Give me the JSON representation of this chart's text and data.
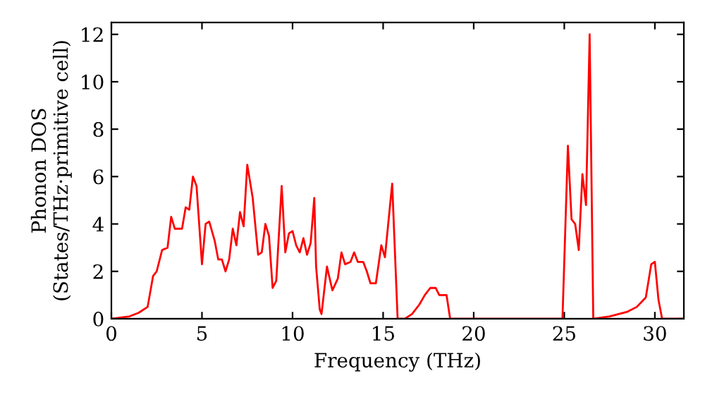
{
  "chart_data": {
    "type": "line",
    "xlabel": "Frequency (THz)",
    "ylabel": "Phonon DOS\n(States/THz·primitive cell)",
    "xlim": [
      0,
      31.6
    ],
    "ylim": [
      0,
      12.5
    ],
    "xticks": [
      0,
      5,
      10,
      15,
      20,
      25,
      30
    ],
    "yticks": [
      0,
      2,
      4,
      6,
      8,
      10,
      12
    ],
    "grid": false,
    "legend": false,
    "series": [
      {
        "color": "#ff0000",
        "x": [
          0,
          1,
          1.5,
          2,
          2.3,
          2.5,
          2.8,
          3.1,
          3.3,
          3.5,
          3.9,
          4.1,
          4.3,
          4.5,
          4.7,
          5.0,
          5.2,
          5.4,
          5.7,
          5.9,
          6.1,
          6.3,
          6.5,
          6.7,
          6.9,
          7.1,
          7.3,
          7.5,
          7.8,
          8.1,
          8.3,
          8.5,
          8.7,
          8.9,
          9.1,
          9.4,
          9.6,
          9.8,
          10.0,
          10.2,
          10.4,
          10.6,
          10.8,
          11.0,
          11.2,
          11.3,
          11.5,
          11.6,
          11.9,
          12.2,
          12.5,
          12.7,
          12.9,
          13.2,
          13.4,
          13.6,
          13.9,
          14.1,
          14.3,
          14.6,
          14.9,
          15.1,
          15.5,
          15.8,
          16.2,
          16.6,
          17.0,
          17.3,
          17.6,
          17.9,
          18.1,
          18.5,
          18.7,
          24.9,
          25.2,
          25.4,
          25.6,
          25.8,
          26.0,
          26.2,
          26.4,
          26.6,
          27.5,
          28.5,
          29.0,
          29.5,
          29.8,
          30.0,
          30.2,
          30.4,
          31.6
        ],
        "values": [
          0,
          0.1,
          0.25,
          0.5,
          1.8,
          2.0,
          2.9,
          3.0,
          4.3,
          3.8,
          3.8,
          4.7,
          4.6,
          6.0,
          5.6,
          2.3,
          4.0,
          4.1,
          3.3,
          2.5,
          2.5,
          2.0,
          2.5,
          3.8,
          3.1,
          4.5,
          3.9,
          6.5,
          5.1,
          2.7,
          2.8,
          4.0,
          3.5,
          1.3,
          1.6,
          5.6,
          2.8,
          3.6,
          3.7,
          3.1,
          2.8,
          3.4,
          2.7,
          3.2,
          5.1,
          2.2,
          0.4,
          0.2,
          2.2,
          1.2,
          1.7,
          2.8,
          2.3,
          2.4,
          2.8,
          2.4,
          2.4,
          2.0,
          1.5,
          1.5,
          3.1,
          2.6,
          5.7,
          0,
          0,
          0.2,
          0.6,
          1.0,
          1.3,
          1.3,
          1.0,
          1.0,
          0,
          0,
          7.3,
          4.2,
          4.0,
          2.9,
          6.1,
          4.8,
          12.0,
          0,
          0.1,
          0.3,
          0.5,
          0.9,
          2.3,
          2.4,
          0.8,
          0,
          0
        ]
      }
    ]
  }
}
